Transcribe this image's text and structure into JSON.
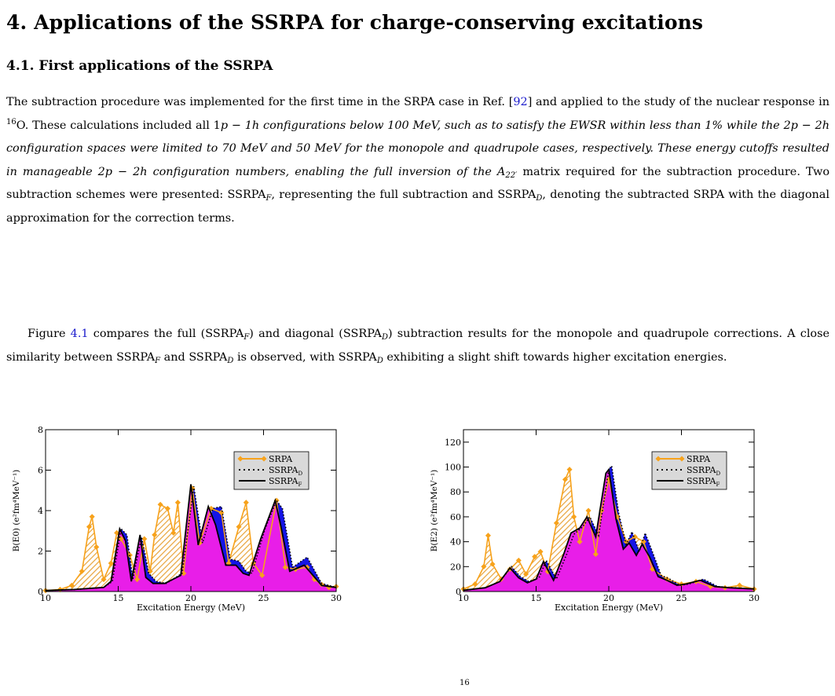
{
  "section": {
    "number": "4.",
    "title": "Applications of the SSRPA for charge-conserving excitations"
  },
  "subsection": {
    "number": "4.1.",
    "title": "First applications of the SSRPA"
  },
  "paragraph1": {
    "t1": "The subtraction procedure was implemented for the first time in the SRPA case in Ref. [",
    "ref1": "92",
    "t2": "] and applied to the study of the nuclear response in ",
    "iso_mass": "16",
    "iso_el": "O. These calculations included all 1",
    "t3": "p − 1",
    "t4": "h configurations below 100 MeV, such as to satisfy the EWSR within less than 1% while the 2",
    "t5": "p − 2",
    "t6": "h configuration spaces were limited to 70 MeV and 50 MeV for the monopole and quadrupole cases, respectively. These energy cutoffs resulted in manageable 2",
    "t7": "p − 2",
    "t8": "h configuration numbers, enabling the full inversion of the ",
    "mat": "A",
    "mat_sub": "22′",
    "t9": " matrix required for the subtraction procedure. Two subtraction schemes were presented: SSRPA",
    "sub_f": "F",
    "t10": ", representing the full subtraction and SSRPA",
    "sub_d": "D",
    "t11": ", denoting the subtracted SRPA with the diagonal approximation for the correction terms."
  },
  "paragraph2": {
    "t1": "Figure ",
    "ref": "4.1",
    "t2": " compares the full (SSRPA",
    "s1": "F",
    "t3": ") and diagonal (SSRPA",
    "s2": "D",
    "t4": ") subtraction results for the monopole and quadrupole corrections. A close similarity between SSRPA",
    "s3": "F",
    "t5": " and SSRPA",
    "s4": "D",
    "t6": " is observed, with SSRPA",
    "s5": "D",
    "t7": " exhibiting a slight shift towards higher excitation energies."
  },
  "caption_fragment": "16",
  "colors": {
    "srpa": "#f7a21b",
    "srpa_hatch": "#e8a33a",
    "ssrpa_d_fill": "#1414e6",
    "ssrpa_f_fill": "#e81ee8"
  },
  "chart_data": [
    {
      "type": "line",
      "id": "monopole",
      "xlabel": "Excitation Energy (MeV)",
      "ylabel": "B(E0) (e²fm⁴MeV⁻¹)",
      "xlim": [
        10,
        30
      ],
      "ylim": [
        0,
        8
      ],
      "xticks": [
        10,
        15,
        20,
        25,
        30
      ],
      "yticks": [
        0,
        2,
        4,
        6,
        8
      ],
      "legend": {
        "placement": "top-right",
        "entries": [
          "SRPA",
          "SSRPA",
          "SSRPA"
        ],
        "subs": [
          "",
          "D",
          "F"
        ]
      },
      "series": [
        {
          "name": "SRPA",
          "x": [
            10,
            11,
            11.8,
            12.5,
            13,
            13.2,
            13.5,
            14,
            14.5,
            14.9,
            15.2,
            15.8,
            16.3,
            16.8,
            17.2,
            17.5,
            17.9,
            18.4,
            18.8,
            19.1,
            19.5,
            20.1,
            20.6,
            21.4,
            22.1,
            22.6,
            23.3,
            23.8,
            24.3,
            24.9,
            25.9,
            26.5,
            27.2,
            28,
            28.5,
            29,
            29.5,
            30
          ],
          "y": [
            0.05,
            0.1,
            0.3,
            1.0,
            3.2,
            3.7,
            2.2,
            0.6,
            1.4,
            2.9,
            2.6,
            1.8,
            0.6,
            2.6,
            1.0,
            2.8,
            4.3,
            4.1,
            2.9,
            4.4,
            0.9,
            5.1,
            2.4,
            4.1,
            3.9,
            1.4,
            3.2,
            4.4,
            1.4,
            0.8,
            4.5,
            1.2,
            1.1,
            1.2,
            0.6,
            0.35,
            0.2,
            0.25
          ]
        },
        {
          "name": "SSRPA_D",
          "x": [
            10,
            12,
            14,
            14.6,
            15.2,
            15.6,
            16,
            16.6,
            17.1,
            17.6,
            18.3,
            19.4,
            20.2,
            20.8,
            21.5,
            22.1,
            22.7,
            23.3,
            23.8,
            24.2,
            25.1,
            25.9,
            26.3,
            27,
            28,
            29,
            30
          ],
          "y": [
            0.05,
            0.1,
            0.2,
            0.5,
            3.1,
            2.8,
            0.6,
            2.7,
            0.9,
            0.5,
            0.4,
            0.9,
            5.2,
            2.4,
            4.1,
            4.2,
            1.6,
            1.5,
            1.0,
            0.9,
            3.1,
            4.5,
            4.1,
            1.2,
            1.7,
            0.4,
            0.2
          ]
        },
        {
          "name": "SSRPA_F",
          "x": [
            10,
            12,
            14,
            14.5,
            15.1,
            15.5,
            15.9,
            16.5,
            16.9,
            17.4,
            18.2,
            19.3,
            20,
            20.5,
            21.2,
            21.7,
            22.4,
            23.1,
            23.6,
            24,
            24.8,
            25.8,
            26.2,
            26.8,
            27.8,
            29,
            30
          ],
          "y": [
            0.05,
            0.1,
            0.2,
            0.5,
            3.1,
            2.5,
            0.5,
            2.8,
            0.7,
            0.4,
            0.4,
            0.8,
            5.3,
            2.3,
            4.2,
            3.3,
            1.3,
            1.3,
            0.9,
            0.8,
            2.6,
            4.5,
            3.2,
            1.0,
            1.3,
            0.3,
            0.2
          ]
        }
      ]
    },
    {
      "type": "line",
      "id": "quadrupole",
      "xlabel": "Excitation Energy (MeV)",
      "ylabel": "B(E2) (e²fm⁴MeV⁻¹)",
      "xlim": [
        10,
        30
      ],
      "ylim": [
        0,
        130
      ],
      "xticks": [
        10,
        15,
        20,
        25,
        30
      ],
      "yticks": [
        0,
        20,
        40,
        60,
        80,
        100,
        120
      ],
      "legend": {
        "placement": "top-right",
        "entries": [
          "SRPA",
          "SSRPA",
          "SSRPA"
        ],
        "subs": [
          "",
          "D",
          "F"
        ]
      },
      "series": [
        {
          "name": "SRPA",
          "x": [
            10,
            10.8,
            11.4,
            11.7,
            12,
            12.6,
            13.2,
            13.8,
            14.3,
            14.9,
            15.3,
            15.8,
            16.4,
            17,
            17.3,
            17.6,
            18,
            18.6,
            19.1,
            19.5,
            20,
            20.6,
            21.2,
            21.8,
            22.4,
            23,
            24,
            25,
            26,
            27,
            28,
            29,
            30
          ],
          "y": [
            2,
            6,
            20,
            45,
            22,
            10,
            18,
            25,
            14,
            28,
            32,
            16,
            55,
            90,
            98,
            60,
            40,
            65,
            30,
            65,
            90,
            60,
            40,
            44,
            40,
            18,
            10,
            6,
            8,
            4,
            3,
            5,
            2
          ]
        },
        {
          "name": "SSRPA_D",
          "x": [
            10,
            11.5,
            12.5,
            13.3,
            13.9,
            14.5,
            15.2,
            15.7,
            16.4,
            17.1,
            17.6,
            18.2,
            18.7,
            19.3,
            20,
            20.2,
            20.7,
            21.2,
            21.6,
            22.1,
            22.5,
            23,
            23.6,
            24.2,
            24.9,
            25.5,
            26.5,
            27.5,
            28.5,
            30
          ],
          "y": [
            1,
            3,
            8,
            20,
            12,
            8,
            11,
            25,
            10,
            30,
            46,
            52,
            60,
            45,
            98,
            101,
            62,
            38,
            48,
            32,
            47,
            32,
            13,
            10,
            5,
            6,
            10,
            4,
            3,
            2
          ]
        },
        {
          "name": "SSRPA_F",
          "x": [
            10,
            11.5,
            12.5,
            13.2,
            13.8,
            14.4,
            15,
            15.5,
            16.2,
            16.9,
            17.4,
            18,
            18.5,
            19.1,
            19.8,
            20,
            20.5,
            21,
            21.4,
            21.9,
            22.3,
            22.8,
            23.4,
            24,
            24.7,
            25.3,
            26.3,
            27.3,
            28.3,
            30
          ],
          "y": [
            1,
            3,
            8,
            19,
            11,
            7,
            10,
            24,
            9,
            30,
            47,
            51,
            60,
            44,
            95,
            98,
            58,
            34,
            39,
            29,
            38,
            28,
            12,
            9,
            5,
            6,
            9,
            4,
            3,
            2
          ]
        }
      ]
    }
  ]
}
